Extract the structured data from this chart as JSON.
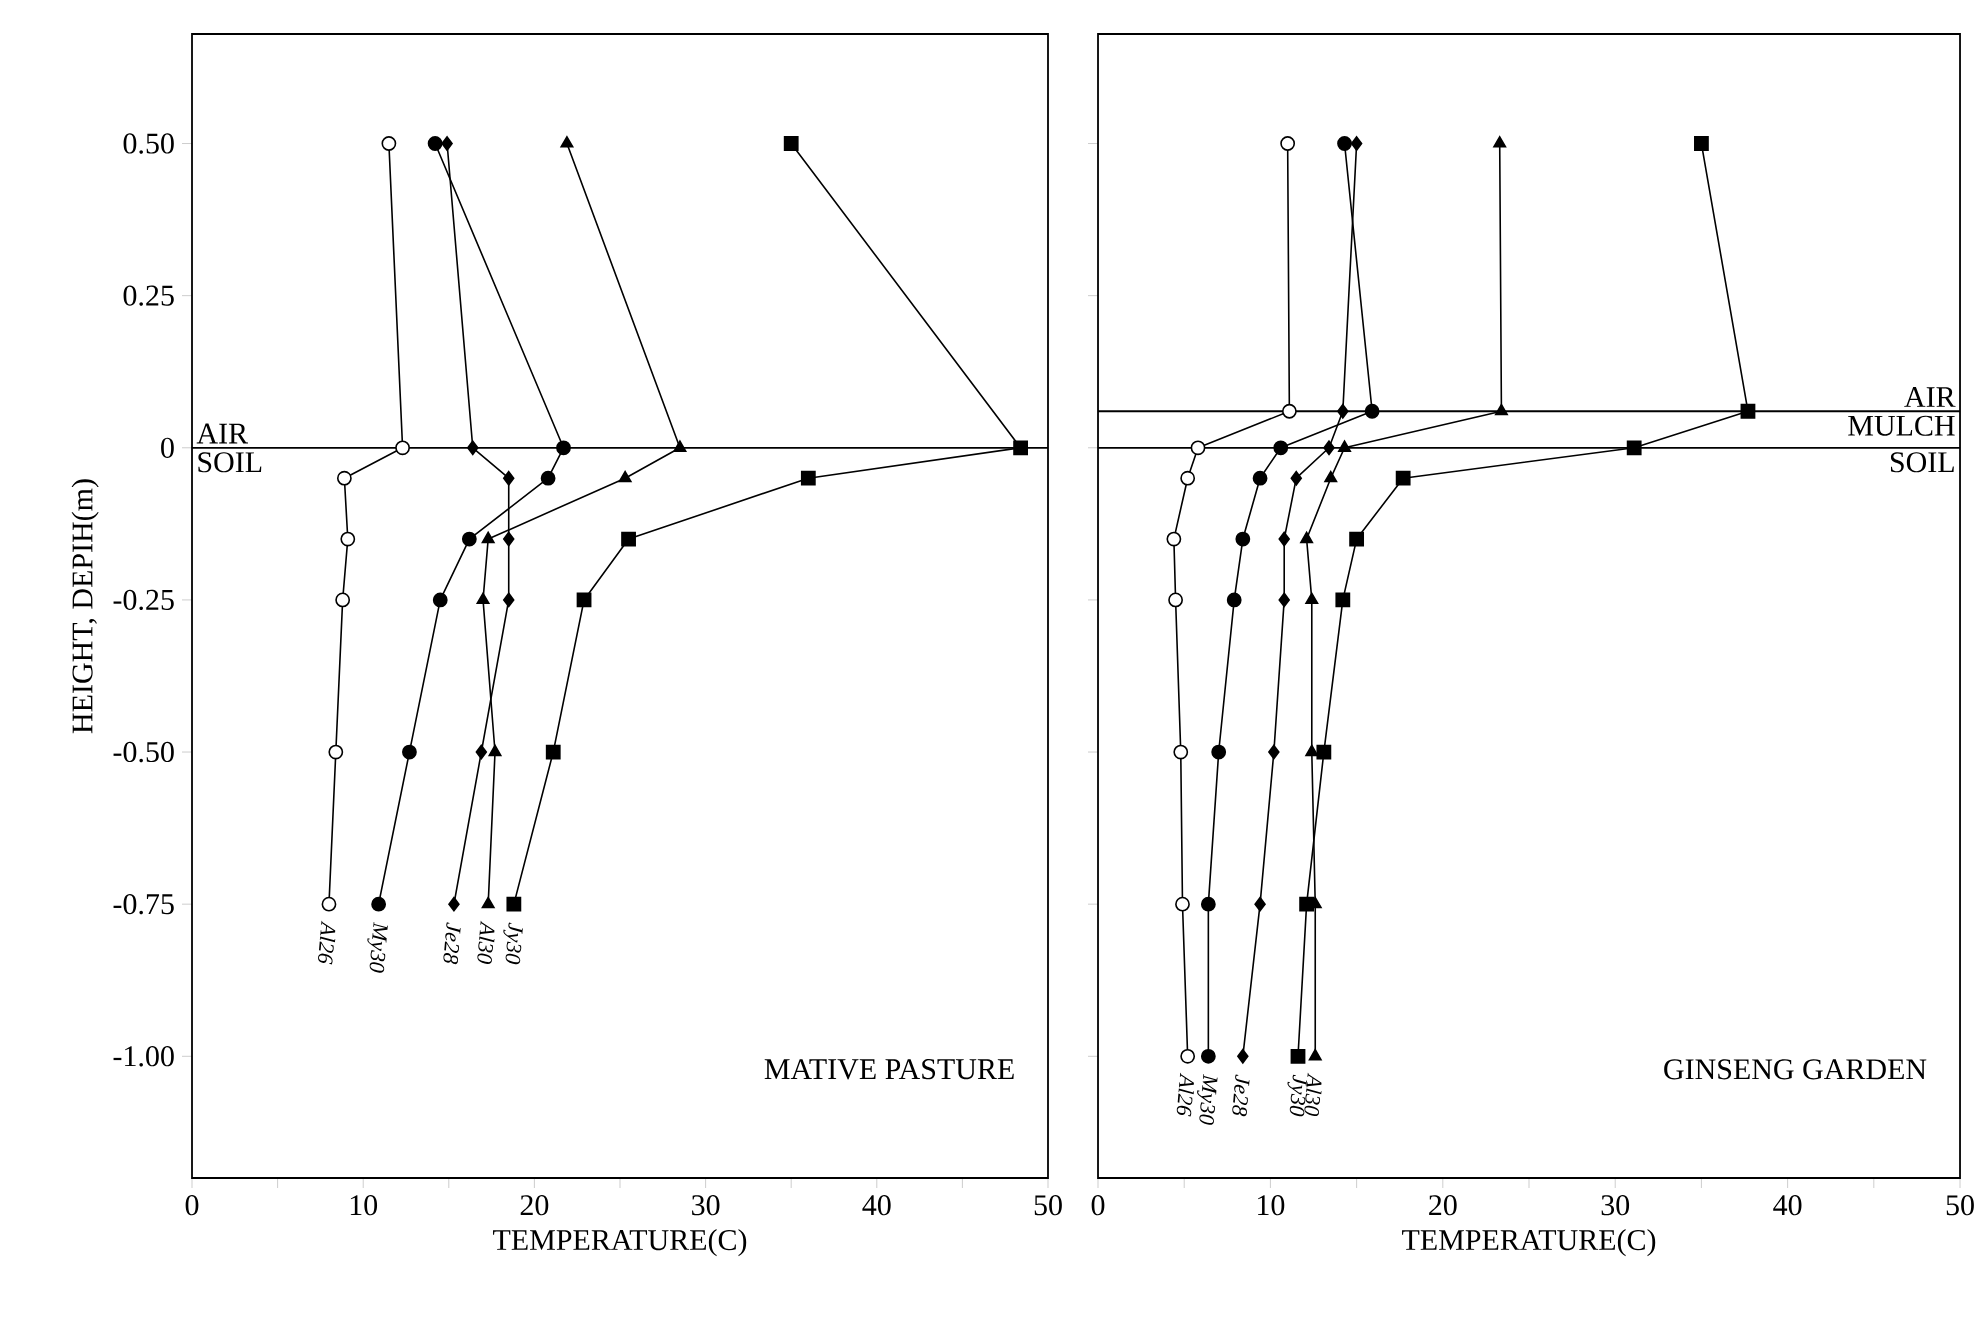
{
  "chart_data": [
    {
      "type": "line",
      "title": "MATIVE PASTURE",
      "xlabel": "TEMPERATURE(C)",
      "ylabel": "HEIGHT, DEPIH(m)",
      "xlim": [
        0,
        50
      ],
      "xticks": [
        0,
        {
          "value": 5,
          "label": null
        },
        10,
        {
          "value": 15,
          "label": null
        },
        20,
        {
          "value": 25,
          "label": null
        },
        30,
        {
          "value": 35,
          "label": null
        },
        40,
        {
          "value": 45,
          "label": null
        },
        50
      ],
      "ylim": [
        -1.2,
        0.68
      ],
      "yticks": [
        {
          "value": 0.5,
          "label": "0.50"
        },
        {
          "value": 0.25,
          "label": "0.25"
        },
        0,
        {
          "value": -0.25,
          "label": "-0.25"
        },
        {
          "value": -0.5,
          "label": "-0.50"
        },
        {
          "value": -0.75,
          "label": "-0.75"
        },
        {
          "value": -1.0,
          "label": "-1.00"
        }
      ],
      "ref_lines": [
        {
          "axis": "y",
          "value": 0,
          "label": "AIR"
        }
      ],
      "annotations": [
        "SOIL"
      ],
      "series": [
        {
          "name": "Al26",
          "color": "#000000",
          "marker": "circle",
          "colors": [
            "#ffffff",
            "#ffffff",
            "#ffffff",
            "#ffffff",
            "#ffffff",
            "#ffffff",
            "#ffffff"
          ],
          "x": [
            11.5,
            12.3,
            8.9,
            9.1,
            8.8,
            8.4,
            8.0
          ],
          "values": [
            0.5,
            0,
            -0.05,
            -0.15,
            -0.25,
            -0.5,
            -0.75
          ]
        },
        {
          "name": "My30",
          "color": "#000000",
          "marker": "circle",
          "x": [
            14.2,
            21.7,
            20.8,
            16.2,
            14.5,
            12.7,
            10.9
          ],
          "values": [
            0.5,
            0,
            -0.05,
            -0.15,
            -0.25,
            -0.5,
            -0.75
          ]
        },
        {
          "name": "Je28",
          "color": "#000000",
          "marker": "diamond",
          "x": [
            14.9,
            16.4,
            18.5,
            18.5,
            18.5,
            16.9,
            15.3
          ],
          "values": [
            0.5,
            0,
            -0.05,
            -0.15,
            -0.25,
            -0.5,
            -0.75
          ]
        },
        {
          "name": "Al30",
          "color": "#000000",
          "marker": "triangle",
          "x": [
            21.9,
            28.5,
            25.3,
            17.3,
            17.0,
            17.7,
            17.3
          ],
          "values": [
            0.5,
            0,
            -0.05,
            -0.15,
            -0.25,
            -0.5,
            -0.75
          ]
        },
        {
          "name": "Jy30",
          "color": "#000000",
          "marker": "square",
          "x": [
            35.0,
            48.4,
            36.0,
            25.5,
            22.9,
            21.1,
            18.8
          ],
          "values": [
            0.5,
            0,
            -0.05,
            -0.15,
            -0.25,
            -0.5,
            -0.75
          ]
        }
      ]
    },
    {
      "type": "line",
      "title": "GINSENG GARDEN",
      "xlabel": "TEMPERATURE(C)",
      "tick_labels": "x",
      "xlim": [
        0,
        50
      ],
      "xticks": [
        0,
        {
          "value": 5,
          "label": null
        },
        10,
        {
          "value": 15,
          "label": null
        },
        20,
        {
          "value": 25,
          "label": null
        },
        30,
        {
          "value": 35,
          "label": null
        },
        40,
        {
          "value": 45,
          "label": null
        },
        50
      ],
      "ylim": [
        -1.2,
        0.68
      ],
      "yticks": [
        0.5,
        0.25,
        0,
        -0.25,
        -0.5,
        -0.75,
        -1.0
      ],
      "ref_lines": [
        {
          "axis": "y",
          "value": 0.06,
          "label": "AIR"
        },
        {
          "axis": "y",
          "value": 0,
          "label": "SOIL"
        }
      ],
      "annotations": [
        "MULCH"
      ],
      "series": [
        {
          "name": "Al26",
          "color": "#000000",
          "marker": "circle",
          "colors": [
            "#ffffff",
            "#ffffff",
            "#ffffff",
            "#ffffff",
            "#ffffff",
            "#ffffff",
            "#ffffff",
            "#ffffff",
            "#ffffff"
          ],
          "x": [
            11.0,
            11.1,
            5.8,
            5.2,
            4.4,
            4.5,
            4.8,
            4.9,
            5.2
          ],
          "values": [
            0.5,
            0.06,
            0,
            -0.05,
            -0.15,
            -0.25,
            -0.5,
            -0.75,
            -1.0
          ]
        },
        {
          "name": "My30",
          "color": "#000000",
          "marker": "circle",
          "x": [
            14.3,
            15.9,
            10.6,
            9.4,
            8.4,
            7.9,
            7.0,
            6.4,
            6.4
          ],
          "values": [
            0.5,
            0.06,
            0,
            -0.05,
            -0.15,
            -0.25,
            -0.5,
            -0.75,
            -1.0
          ]
        },
        {
          "name": "Je28",
          "color": "#000000",
          "marker": "diamond",
          "x": [
            15.0,
            14.2,
            13.4,
            11.5,
            10.8,
            10.8,
            10.2,
            9.4,
            8.4
          ],
          "values": [
            0.5,
            0.06,
            0,
            -0.05,
            -0.15,
            -0.25,
            -0.5,
            -0.75,
            -1.0
          ]
        },
        {
          "name": "Al30",
          "color": "#000000",
          "marker": "triangle",
          "x": [
            23.3,
            23.4,
            14.3,
            13.5,
            12.1,
            12.4,
            12.4,
            12.6,
            12.6
          ],
          "values": [
            0.5,
            0.06,
            0,
            -0.05,
            -0.15,
            -0.25,
            -0.5,
            -0.75,
            -1.0
          ]
        },
        {
          "name": "Jy30",
          "color": "#000000",
          "marker": "square",
          "x": [
            35.0,
            37.7,
            31.1,
            17.7,
            15.0,
            14.2,
            13.1,
            12.1,
            11.6
          ],
          "values": [
            0.5,
            0.06,
            0,
            -0.05,
            -0.15,
            -0.25,
            -0.5,
            -0.75,
            -1.0
          ]
        }
      ]
    }
  ]
}
